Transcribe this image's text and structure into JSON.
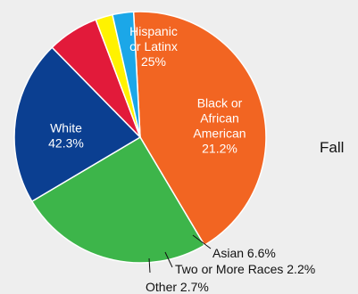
{
  "heading": "Fall",
  "chart_data": {
    "type": "pie",
    "slices": [
      {
        "label_lines": [
          "White",
          "42.3%"
        ],
        "value": 42.3,
        "color": "#f26522",
        "label_color": "#ffffff"
      },
      {
        "label_lines": [
          "Hispanic",
          "or Latinx",
          "25%"
        ],
        "value": 25.0,
        "color": "#3db54a",
        "label_color": "#ffffff"
      },
      {
        "label_lines": [
          "Black or",
          "African",
          "American",
          "21.2%"
        ],
        "value": 21.2,
        "color": "#0b3f91",
        "label_color": "#ffffff"
      },
      {
        "label_lines": [
          "Asian  6.6%"
        ],
        "value": 6.6,
        "color": "#e21a3a",
        "label_color": "#111111"
      },
      {
        "label_lines": [
          "Two or More Races  2.2%"
        ],
        "value": 2.2,
        "color": "#fff200",
        "label_color": "#111111"
      },
      {
        "label_lines": [
          "Other  2.7%"
        ],
        "value": 2.7,
        "color": "#1ba7e8",
        "label_color": "#111111"
      }
    ],
    "start_angle_deg": -3,
    "direction": "clockwise",
    "legend": "none"
  }
}
